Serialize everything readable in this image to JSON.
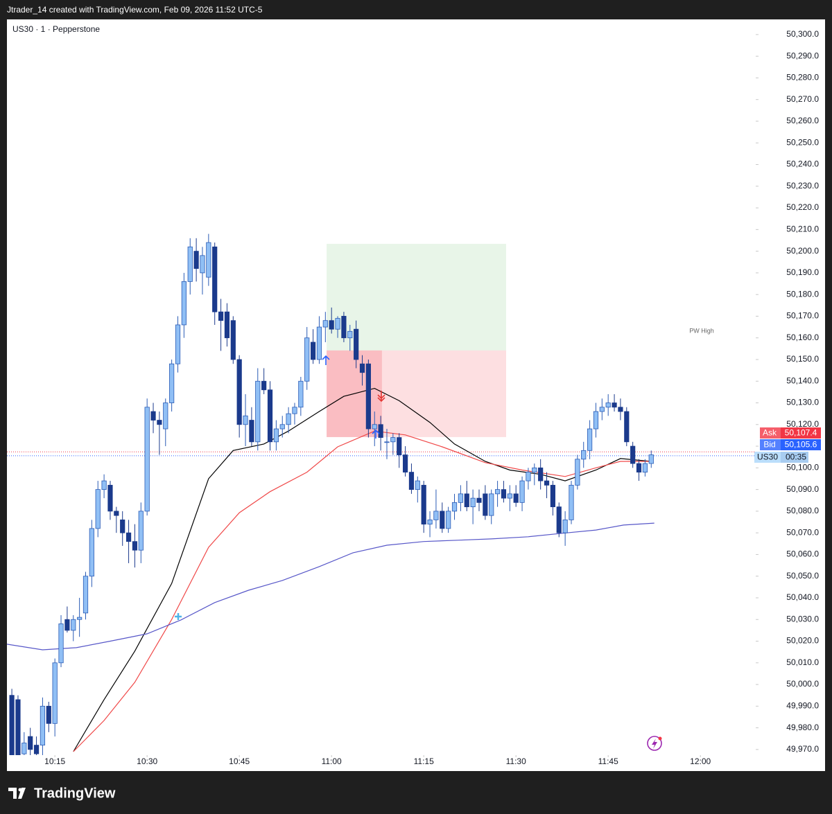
{
  "header": {
    "text": "Jtrader_14 created with TradingView.com, Feb 09, 2026 11:52 UTC-5"
  },
  "footer": {
    "brand": "TradingView"
  },
  "chart_data": {
    "type": "candlestick",
    "title": "US30 · 1 · Pepperstone",
    "annotation": "PW High",
    "x": [
      0,
      1,
      2,
      3,
      4,
      5,
      6,
      7,
      8,
      9,
      10,
      11,
      12,
      13,
      14,
      15,
      16,
      17,
      18,
      19,
      20,
      21,
      22,
      23,
      24,
      25,
      26,
      27,
      28,
      29,
      30,
      31,
      32,
      33,
      34,
      35,
      36,
      37,
      38,
      39,
      40,
      41,
      42,
      43,
      44,
      45,
      46,
      47,
      48,
      49,
      50,
      51,
      52,
      53,
      54,
      55,
      56,
      57,
      58,
      59,
      60,
      61,
      62,
      63,
      64,
      65,
      66,
      67,
      68,
      69,
      70,
      71,
      72,
      73,
      74,
      75,
      76,
      77,
      78,
      79,
      80,
      81,
      82,
      83,
      84,
      85,
      86,
      87,
      88,
      89,
      90,
      91,
      92,
      93,
      94,
      95,
      96,
      97,
      98,
      99,
      100,
      101,
      102,
      103,
      104
    ],
    "open": [
      49995,
      49993,
      49968,
      49976,
      49972,
      49972,
      49990,
      49982,
      50010,
      50030,
      50025,
      50030,
      50033,
      50050,
      50072,
      50090,
      50092,
      50080,
      50076,
      50070,
      50066,
      50062,
      50080,
      50126,
      50122,
      50118,
      50130,
      50148,
      50166,
      50186,
      50200,
      50190,
      50188,
      50202,
      50172,
      50172,
      50168,
      50150,
      50120,
      50122,
      50112,
      50140,
      50136,
      50112,
      50118,
      50120,
      50125,
      50128,
      50140,
      50158,
      50150,
      50165,
      50168,
      50164,
      50170,
      50160,
      50164,
      50148,
      50148,
      50118,
      50120,
      50112,
      50112,
      50114,
      50106,
      50098,
      50090,
      50092,
      50074,
      50076,
      50080,
      50072,
      50080,
      50084,
      50088,
      50082,
      50086,
      50088,
      50078,
      50088,
      50090,
      50086,
      50088,
      50084,
      50094,
      50098,
      50100,
      50094,
      50092,
      50082,
      50070,
      50076,
      50092,
      50104,
      50108,
      50118,
      50126,
      50128,
      50130,
      50128,
      50126,
      50110,
      50102,
      50098,
      50102
    ],
    "high": [
      49998,
      49995,
      49978,
      49980,
      49976,
      49994,
      49992,
      50012,
      50032,
      50036,
      50032,
      50040,
      50052,
      50076,
      50094,
      50097,
      50094,
      50082,
      50080,
      50076,
      50074,
      50084,
      50132,
      50130,
      50126,
      50132,
      50150,
      50170,
      50190,
      50206,
      50206,
      50202,
      50208,
      50204,
      50178,
      50176,
      50170,
      50152,
      50134,
      50128,
      50146,
      50146,
      50140,
      50122,
      50124,
      50128,
      50130,
      50142,
      50165,
      50164,
      50170,
      50172,
      50174,
      50170,
      50172,
      50166,
      50168,
      50152,
      50150,
      50126,
      50124,
      50118,
      50116,
      50116,
      50110,
      50102,
      50096,
      50094,
      50080,
      50090,
      50084,
      50082,
      50088,
      50092,
      50094,
      50090,
      50090,
      50092,
      50090,
      50094,
      50094,
      50092,
      50092,
      50096,
      50100,
      50102,
      50104,
      50098,
      50094,
      50084,
      50080,
      50094,
      50106,
      50112,
      50122,
      50130,
      50132,
      50134,
      50134,
      50132,
      50128,
      50112,
      50104,
      50104,
      50108
    ],
    "low": [
      49962,
      49962,
      49966,
      49965,
      49965,
      49966,
      49978,
      49976,
      50008,
      50024,
      50020,
      50022,
      50030,
      50045,
      50068,
      50086,
      50076,
      50070,
      50064,
      50056,
      50054,
      50056,
      50078,
      50116,
      50106,
      50110,
      50126,
      50144,
      50160,
      50180,
      50186,
      50180,
      50184,
      50166,
      50154,
      50156,
      50148,
      50114,
      50110,
      50110,
      50108,
      50134,
      50108,
      50108,
      50114,
      50116,
      50120,
      50124,
      50136,
      50148,
      50148,
      50158,
      50162,
      50160,
      50158,
      50154,
      50146,
      50138,
      50114,
      50110,
      50108,
      50104,
      50106,
      50100,
      50096,
      50088,
      50084,
      50070,
      50068,
      50072,
      50070,
      50070,
      50076,
      50080,
      50080,
      50074,
      50080,
      50076,
      50074,
      50082,
      50084,
      50080,
      50082,
      50080,
      50090,
      50092,
      50090,
      50086,
      50078,
      50068,
      50064,
      50074,
      50090,
      50100,
      50104,
      50114,
      50122,
      50124,
      50126,
      50122,
      50110,
      50100,
      50094,
      50096,
      50100
    ],
    "close": [
      49966,
      49967,
      49973,
      49970,
      49968,
      49990,
      49982,
      50010,
      50028,
      50025,
      50030,
      50031,
      50050,
      50072,
      50090,
      50094,
      50080,
      50078,
      50070,
      50066,
      50062,
      50080,
      50128,
      50122,
      50120,
      50130,
      50148,
      50166,
      50186,
      50202,
      50192,
      50198,
      50204,
      50172,
      50168,
      50160,
      50150,
      50120,
      50124,
      50112,
      50140,
      50136,
      50112,
      50118,
      50120,
      50125,
      50128,
      50140,
      50160,
      50150,
      50165,
      50168,
      50164,
      50169,
      50160,
      50163,
      50150,
      50144,
      50118,
      50120,
      50114,
      50112,
      50114,
      50106,
      50098,
      50090,
      50094,
      50074,
      50076,
      50080,
      50072,
      50080,
      50084,
      50088,
      50082,
      50086,
      50084,
      50078,
      50088,
      50090,
      50086,
      50088,
      50084,
      50094,
      50098,
      50100,
      50094,
      50092,
      50082,
      50070,
      50076,
      50092,
      50104,
      50108,
      50118,
      50126,
      50128,
      50130,
      50128,
      50126,
      50112,
      50102,
      50098,
      50102,
      50106
    ],
    "up_color": "#90bff5",
    "down_color": "#1b3a8c",
    "lines": [
      {
        "color": "#000000",
        "x": [
          10,
          15,
          20,
          26,
          32,
          36,
          41,
          45,
          50,
          54,
          59,
          63,
          68,
          72,
          77,
          81,
          86,
          90,
          95,
          99,
          104
        ],
        "values": [
          49969,
          49993,
          50015.4,
          50046.6,
          50095,
          50108,
          50111,
          50117,
          50126,
          50133,
          50136.7,
          50131,
          50121,
          50111,
          50103,
          50099,
          50097,
          50094,
          50099,
          50104.3,
          50103
        ]
      },
      {
        "color": "#f04848",
        "x": [
          10,
          15,
          20,
          26,
          32,
          37,
          42,
          48,
          53,
          59,
          64,
          70,
          77,
          83,
          90,
          95,
          99,
          104
        ],
        "values": [
          49969,
          49983.4,
          50001,
          50030,
          50063.3,
          50079.3,
          50089,
          50098,
          50109.7,
          50117,
          50115.2,
          50109.7,
          50102.4,
          50099,
          50096,
          50100,
          50103,
          50103
        ]
      },
      {
        "color": "#5656c8",
        "x": [
          -0.8,
          5,
          10.5,
          16,
          22,
          27.5,
          33,
          38.5,
          44,
          50,
          55.5,
          61,
          67,
          72.5,
          78,
          84,
          89.5,
          95,
          99.5,
          104.5
        ],
        "values": [
          50018.6,
          50016,
          50017,
          50020,
          50023.4,
          50029.8,
          50037.8,
          50043.5,
          50048,
          50054.4,
          50060.8,
          50064.3,
          50066,
          50066.6,
          50067.2,
          50068.2,
          50069.8,
          50071.3,
          50073.6,
          50074.5
        ]
      }
    ],
    "position": {
      "start": 51.2,
      "split": 60.2,
      "end": 80.4,
      "target": 50203.4,
      "entry": 50154.2,
      "stop": 50114.2
    },
    "quotes": [
      {
        "label": "Ask",
        "value": 50107.4,
        "value_label": "50,107.4",
        "color": "#f23645"
      },
      {
        "label": "Bid",
        "value": 50105.6,
        "value_label": "50,105.6",
        "color": "#2962ff"
      }
    ],
    "symbol_tag": {
      "label": "US30",
      "countdown": "00:35"
    },
    "xlim": [
      -0.8,
      121
    ],
    "ylim": [
      49967.4,
      50307.0
    ],
    "xticks": [
      {
        "value": 7,
        "label": "10:15"
      },
      {
        "value": 22,
        "label": "10:30"
      },
      {
        "value": 37,
        "label": "10:45"
      },
      {
        "value": 52,
        "label": "11:00"
      },
      {
        "value": 67,
        "label": "11:15"
      },
      {
        "value": 82,
        "label": "11:30"
      },
      {
        "value": 97,
        "label": "11:45"
      },
      {
        "value": 112,
        "label": "12:00"
      }
    ],
    "yticks": [
      {
        "value": 49970,
        "label": "49,970.0"
      },
      {
        "value": 49980,
        "label": "49,980.0"
      },
      {
        "value": 49990,
        "label": "49,990.0"
      },
      {
        "value": 50000,
        "label": "50,000.0"
      },
      {
        "value": 50010,
        "label": "50,010.0"
      },
      {
        "value": 50020,
        "label": "50,020.0"
      },
      {
        "value": 50030,
        "label": "50,030.0"
      },
      {
        "value": 50040,
        "label": "50,040.0"
      },
      {
        "value": 50050,
        "label": "50,050.0"
      },
      {
        "value": 50060,
        "label": "50,060.0"
      },
      {
        "value": 50070,
        "label": "50,070.0"
      },
      {
        "value": 50080,
        "label": "50,080.0"
      },
      {
        "value": 50090,
        "label": "50,090.0"
      },
      {
        "value": 50100,
        "label": "50,100.0"
      },
      {
        "value": 50110,
        "label": "50,110.0"
      },
      {
        "value": 50120,
        "label": "50,120.0"
      },
      {
        "value": 50130,
        "label": "50,130.0"
      },
      {
        "value": 50140,
        "label": "50,140.0"
      },
      {
        "value": 50150,
        "label": "50,150.0"
      },
      {
        "value": 50160,
        "label": "50,160.0"
      },
      {
        "value": 50170,
        "label": "50,170.0"
      },
      {
        "value": 50180,
        "label": "50,180.0"
      },
      {
        "value": 50190,
        "label": "50,190.0"
      },
      {
        "value": 50200,
        "label": "50,200.0"
      },
      {
        "value": 50210,
        "label": "50,210.0"
      },
      {
        "value": 50220,
        "label": "50,220.0"
      },
      {
        "value": 50230,
        "label": "50,230.0"
      },
      {
        "value": 50240,
        "label": "50,240.0"
      },
      {
        "value": 50250,
        "label": "50,250.0"
      },
      {
        "value": 50260,
        "label": "50,260.0"
      },
      {
        "value": 50270,
        "label": "50,270.0"
      },
      {
        "value": 50280,
        "label": "50,280.0"
      },
      {
        "value": 50290,
        "label": "50,290.0"
      },
      {
        "value": 50300,
        "label": "50,300.0"
      }
    ],
    "grid": false
  }
}
